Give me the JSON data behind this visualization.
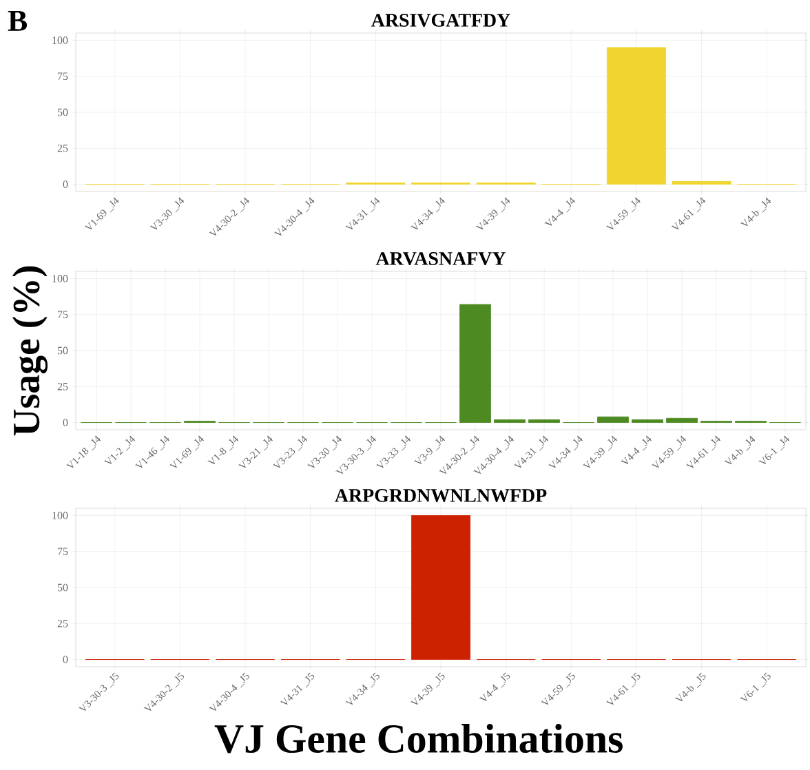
{
  "chart_data": [
    {
      "type": "bar",
      "title": "ARSIVGATFDY",
      "annotations": [
        "B"
      ],
      "categories": [
        "V1-69 _J4",
        "V3-30 _J4",
        "V4-30-2 _J4",
        "V4-30-4 _J4",
        "V4-31 _J4",
        "V4-34 _J4",
        "V4-39 _J4",
        "V4-4 _J4",
        "V4-59 _J4",
        "V4-61 _J4",
        "V4-b _J4"
      ],
      "values": [
        0,
        0,
        0,
        0,
        1,
        1,
        1,
        0,
        95,
        2,
        0
      ],
      "color": "#f0d530",
      "ylim": [
        -5,
        105
      ],
      "yticks": [
        0,
        25,
        50,
        75,
        100
      ],
      "grid": true
    },
    {
      "type": "bar",
      "title": "ARVASNAFVY",
      "ylabel": "Usage (%)",
      "categories": [
        "V1-18 _J4",
        "V1-2 _J4",
        "V1-46 _J4",
        "V1-69 _J4",
        "V1-8 _J4",
        "V3-21 _J4",
        "V3-23 _J4",
        "V3-30 _J4",
        "V3-30-3 _J4",
        "V3-33 _J4",
        "V3-9 _J4",
        "V4-30-2 _J4",
        "V4-30-4 _J4",
        "V4-31 _J4",
        "V4-34 _J4",
        "V4-39 _J4",
        "V4-4 _J4",
        "V4-59 _J4",
        "V4-61 _J4",
        "V4-b _J4",
        "V6-1 _J4"
      ],
      "values": [
        0,
        0,
        0,
        1,
        0,
        0,
        0,
        0,
        0,
        0,
        0,
        82,
        2,
        2,
        0,
        4,
        2,
        3,
        1,
        1,
        0
      ],
      "color": "#4e8a22",
      "ylim": [
        -5,
        105
      ],
      "yticks": [
        0,
        25,
        50,
        75,
        100
      ],
      "grid": true
    },
    {
      "type": "bar",
      "title": "ARPGRDNWNLNWFDP",
      "xlabel": "VJ Gene Combinations",
      "categories": [
        "V3-30-3 _J5",
        "V4-30-2 _J5",
        "V4-30-4 _J5",
        "V4-31 _J5",
        "V4-34 _J5",
        "V4-39 _J5",
        "V4-4 _J5",
        "V4-59 _J5",
        "V4-61 _J5",
        "V4-b _J5",
        "V6-1 _J5"
      ],
      "values": [
        0,
        0,
        0,
        0,
        0,
        100,
        0,
        0,
        0,
        0,
        0
      ],
      "color": "#cc2200",
      "ylim": [
        -5,
        105
      ],
      "yticks": [
        0,
        25,
        50,
        75,
        100
      ],
      "grid": true
    }
  ]
}
